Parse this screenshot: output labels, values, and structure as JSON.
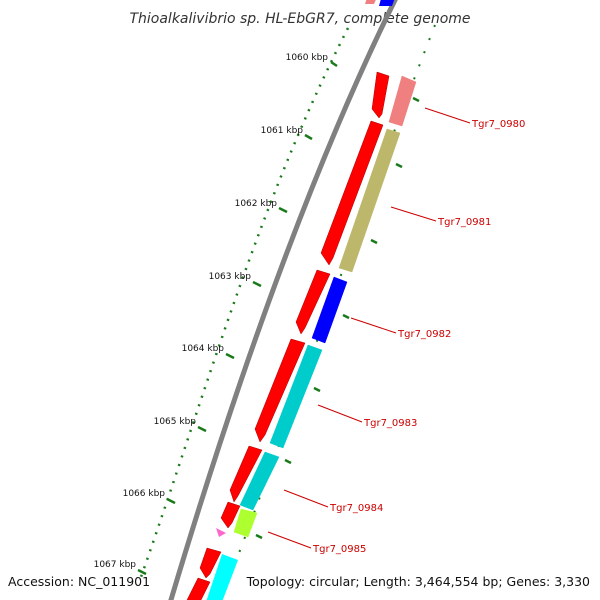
{
  "title": "Thioalkalivibrio sp. HL-EbGR7, complete genome",
  "footer": {
    "accession": "Accession: NC_011901",
    "summary": "Topology: circular; Length: 3,464,554 bp; Genes: 3,330"
  },
  "ticks": [
    {
      "label": "1060 kbp"
    },
    {
      "label": "1061 kbp"
    },
    {
      "label": "1062 kbp"
    },
    {
      "label": "1063 kbp"
    },
    {
      "label": "1064 kbp"
    },
    {
      "label": "1065 kbp"
    },
    {
      "label": "1066 kbp"
    },
    {
      "label": "1067 kbp"
    }
  ],
  "genes": [
    {
      "label": "Tgr7_0980",
      "color": "#f08080"
    },
    {
      "label": "Tgr7_0981",
      "color": "#bdb76b"
    },
    {
      "label": "Tgr7_0982",
      "color": "#0000ff"
    },
    {
      "label": "Tgr7_0983",
      "color": "#00cccc"
    },
    {
      "label": "Tgr7_0984",
      "color": "#00cccc"
    },
    {
      "label": "Tgr7_0985",
      "color": "#adff2f"
    }
  ],
  "colors": {
    "cds": "#ff0000",
    "backbone": "#808080",
    "tick": "#1a7a1a",
    "label": "#cc0000"
  }
}
